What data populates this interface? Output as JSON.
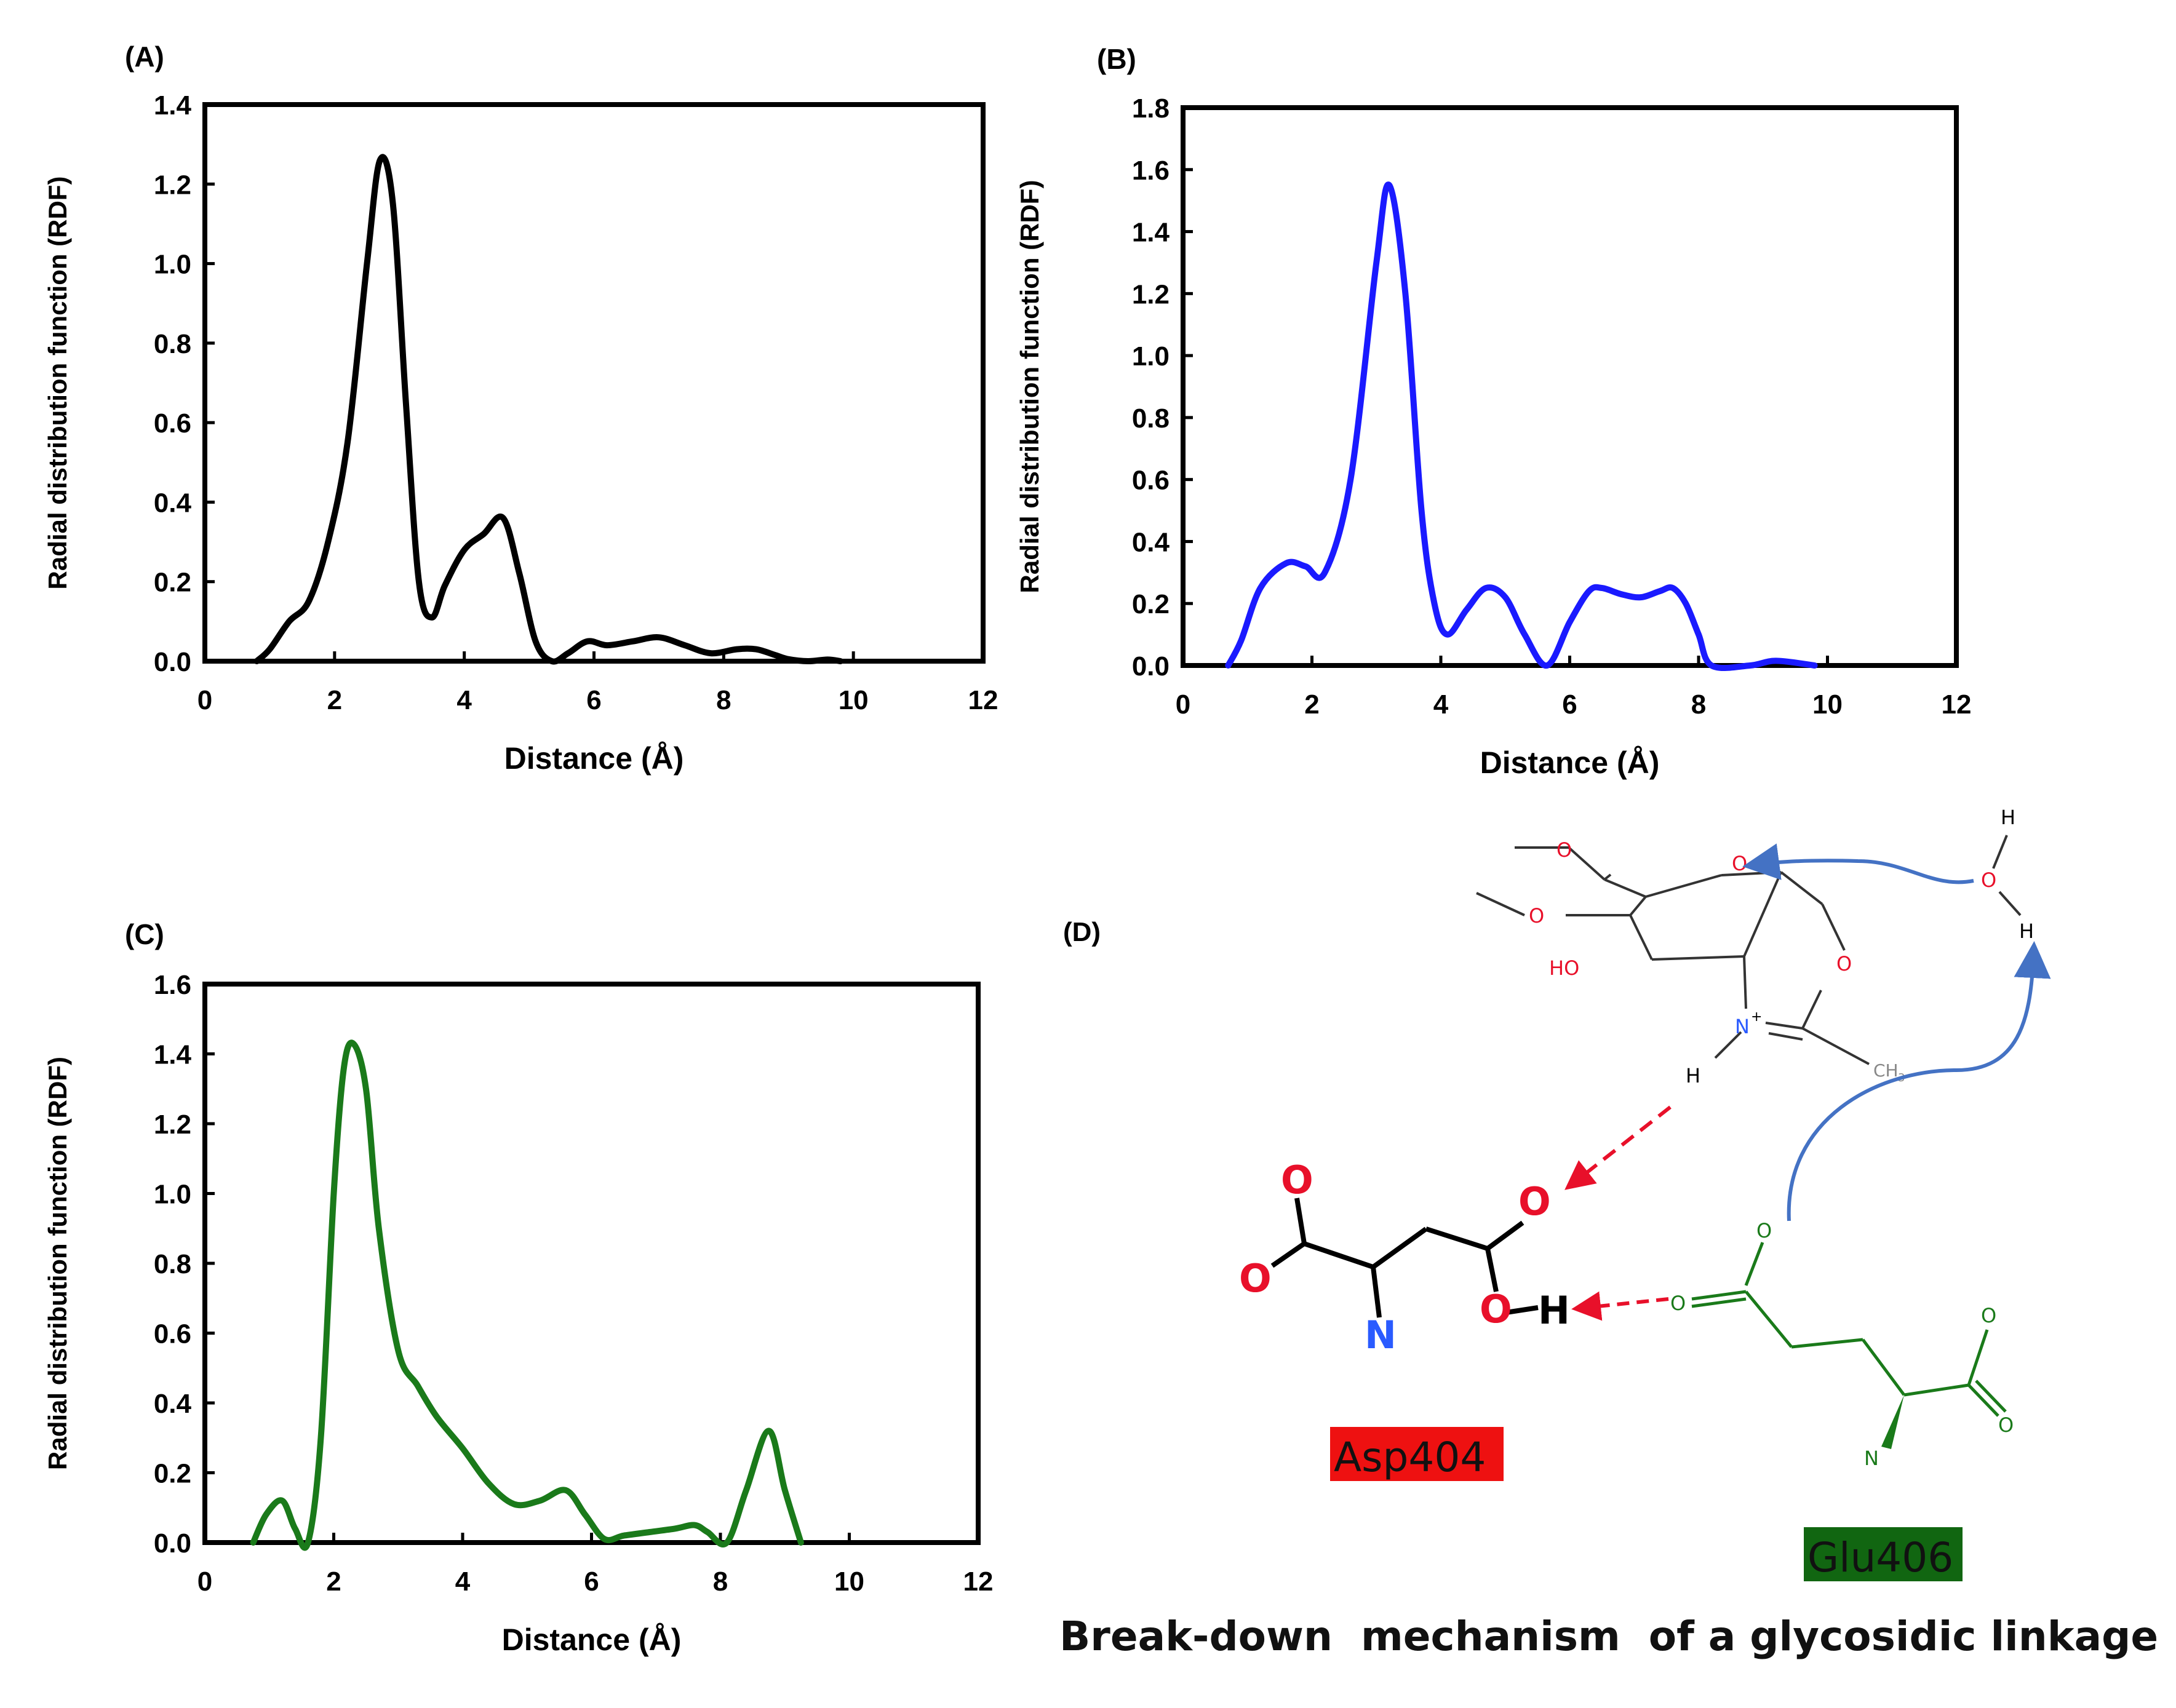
{
  "chart_data": [
    {
      "panel": "(A)",
      "type": "line",
      "xlabel": "Distance (Å)",
      "ylabel": "Radial distribution function (RDF)",
      "xlim": [
        0,
        12
      ],
      "ylim": [
        0,
        1.4
      ],
      "xticks": [
        0,
        2,
        4,
        6,
        8,
        10,
        12
      ],
      "xtick_labels": [
        "0",
        "2",
        "4",
        "6",
        "8",
        "10",
        "12"
      ],
      "yticks": [
        0,
        0.2,
        0.4,
        0.6,
        0.8,
        1.0,
        1.2,
        1.4
      ],
      "ytick_labels": [
        "0.0",
        "0.2",
        "0.4",
        "0.6",
        "0.8",
        "1.0",
        "1.2",
        "1.4"
      ],
      "color": "#000000",
      "series": [
        {
          "name": "RDF",
          "x": [
            0.8,
            1.0,
            1.3,
            1.6,
            1.9,
            2.2,
            2.5,
            2.7,
            2.9,
            3.1,
            3.3,
            3.5,
            3.7,
            4.0,
            4.3,
            4.6,
            4.85,
            5.1,
            5.35,
            5.6,
            5.9,
            6.2,
            6.6,
            7.0,
            7.4,
            7.8,
            8.2,
            8.5,
            8.8,
            9.0,
            9.3,
            9.6,
            9.8
          ],
          "y": [
            0.0,
            0.03,
            0.1,
            0.15,
            0.3,
            0.55,
            1.0,
            1.26,
            1.15,
            0.65,
            0.2,
            0.11,
            0.19,
            0.28,
            0.32,
            0.36,
            0.22,
            0.05,
            0.0,
            0.02,
            0.05,
            0.04,
            0.05,
            0.06,
            0.04,
            0.02,
            0.03,
            0.03,
            0.015,
            0.005,
            0.0,
            0.004,
            0.0
          ]
        }
      ]
    },
    {
      "panel": "(B)",
      "type": "line",
      "xlabel": "Distance (Å)",
      "ylabel": "Radial distribution function (RDF)",
      "xlim": [
        0,
        12
      ],
      "ylim": [
        0,
        1.8
      ],
      "xticks": [
        0,
        2,
        4,
        6,
        8,
        10,
        12
      ],
      "xtick_labels": [
        "0",
        "2",
        "4",
        "6",
        "8",
        "10",
        "12"
      ],
      "yticks": [
        0,
        0.2,
        0.4,
        0.6,
        0.8,
        1.0,
        1.2,
        1.4,
        1.6,
        1.8
      ],
      "ytick_labels": [
        "0.0",
        "0.2",
        "0.4",
        "0.6",
        "0.8",
        "1.0",
        "1.2",
        "1.4",
        "1.6",
        "1.8"
      ],
      "color": "#1a1aff",
      "series": [
        {
          "name": "RDF",
          "x": [
            0.7,
            0.9,
            1.2,
            1.6,
            1.9,
            2.2,
            2.6,
            3.0,
            3.2,
            3.45,
            3.7,
            3.9,
            4.1,
            4.4,
            4.7,
            5.0,
            5.3,
            5.65,
            6.0,
            6.3,
            6.5,
            6.8,
            7.1,
            7.4,
            7.6,
            7.8,
            8.0,
            8.2,
            8.8,
            9.2,
            9.8
          ],
          "y": [
            0.0,
            0.08,
            0.25,
            0.33,
            0.32,
            0.3,
            0.6,
            1.3,
            1.55,
            1.2,
            0.5,
            0.2,
            0.1,
            0.18,
            0.25,
            0.22,
            0.1,
            0.0,
            0.14,
            0.24,
            0.25,
            0.23,
            0.22,
            0.24,
            0.25,
            0.2,
            0.1,
            0.0,
            0.0,
            0.015,
            0.0
          ]
        }
      ]
    },
    {
      "panel": "(C)",
      "type": "line",
      "xlabel": "Distance (Å)",
      "ylabel": "Radial distribution function (RDF)",
      "xlim": [
        0,
        12
      ],
      "ylim": [
        0,
        1.6
      ],
      "xticks": [
        0,
        2,
        4,
        6,
        8,
        10,
        12
      ],
      "xtick_labels": [
        "0",
        "2",
        "4",
        "6",
        "8",
        "10",
        "12"
      ],
      "yticks": [
        0,
        0.2,
        0.4,
        0.6,
        0.8,
        1.0,
        1.2,
        1.4,
        1.6
      ],
      "ytick_labels": [
        "0.0",
        "0.2",
        "0.4",
        "0.6",
        "0.8",
        "1.0",
        "1.2",
        "1.4",
        "1.6"
      ],
      "color": "#1a7a1a",
      "series": [
        {
          "name": "RDF",
          "x": [
            0.75,
            0.95,
            1.2,
            1.4,
            1.6,
            1.8,
            2.0,
            2.15,
            2.3,
            2.5,
            2.7,
            3.0,
            3.3,
            3.6,
            4.0,
            4.4,
            4.8,
            5.2,
            5.6,
            5.9,
            6.2,
            6.5,
            6.9,
            7.3,
            7.6,
            7.8,
            8.1,
            8.4,
            8.75,
            9.0,
            9.25
          ],
          "y": [
            0.0,
            0.08,
            0.12,
            0.04,
            0.0,
            0.3,
            1.0,
            1.35,
            1.43,
            1.3,
            0.9,
            0.55,
            0.45,
            0.36,
            0.27,
            0.17,
            0.11,
            0.12,
            0.15,
            0.08,
            0.01,
            0.02,
            0.03,
            0.04,
            0.05,
            0.03,
            0.0,
            0.15,
            0.32,
            0.15,
            0.0
          ]
        }
      ]
    }
  ],
  "panel_d": {
    "label": "(D)",
    "sugar_atoms": {
      "o_top": "O",
      "o_left": "O",
      "ho": "HO",
      "ring_o": "O",
      "oxazoline_o": "O",
      "n_plus": "N",
      "plus": "+",
      "h_n": "H",
      "ch3": "CH",
      "ch3_sub": "3"
    },
    "water": {
      "h_top": "H",
      "o": "O",
      "h_bottom": "H"
    },
    "asp_atoms": {
      "o_top_left": "O",
      "o_left": "O",
      "n": "N",
      "o_top_right": "O",
      "o_right": "O",
      "h": "H"
    },
    "glu_atoms": {
      "o_top": "O",
      "o_left": "O",
      "o_right_top": "O",
      "o_right_bottom": "O",
      "n": "N"
    },
    "asp_label": "Asp404",
    "glu_label": "Glu406",
    "caption": "Break-down  mechanism  of a glycosidic linkage",
    "colors": {
      "red": "#e8102a",
      "green": "#1a7a1a",
      "blue_arrow": "#4472c4",
      "asp_bg": "#ee1111",
      "glu_bg": "#116611",
      "n_blue": "#2a5bff"
    }
  }
}
